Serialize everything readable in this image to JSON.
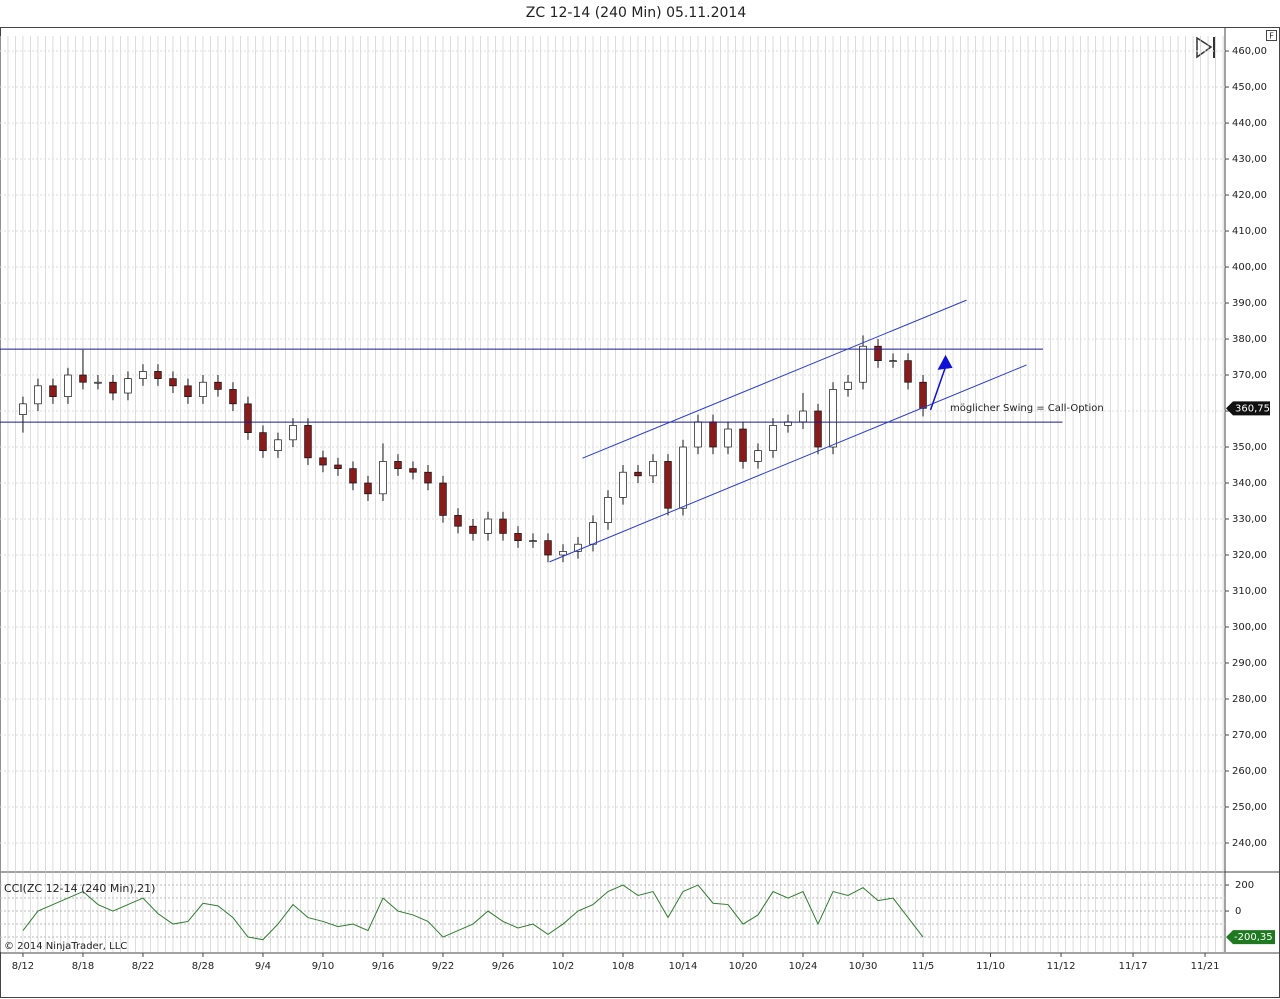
{
  "chart_data": {
    "type": "candlestick",
    "title": "ZC 12-14 (240 Min)  05.11.2014",
    "copyright": "© 2014 NinjaTrader, LLC",
    "xlim": [
      -1.53,
      80.13
    ],
    "xticks": [
      {
        "value": 0,
        "label": "8/12"
      },
      {
        "value": 4,
        "label": "8/18"
      },
      {
        "value": 8,
        "label": "8/22"
      },
      {
        "value": 12,
        "label": "8/28"
      },
      {
        "value": 16,
        "label": "9/4"
      },
      {
        "value": 20,
        "label": "9/10"
      },
      {
        "value": 24,
        "label": "9/16"
      },
      {
        "value": 28,
        "label": "9/22"
      },
      {
        "value": 32,
        "label": "9/26"
      },
      {
        "value": 36,
        "label": "10/2"
      },
      {
        "value": 40,
        "label": "10/8"
      },
      {
        "value": 44,
        "label": "10/14"
      },
      {
        "value": 48,
        "label": "10/20"
      },
      {
        "value": 52,
        "label": "10/24"
      },
      {
        "value": 56,
        "label": "10/30"
      },
      {
        "value": 60,
        "label": "11/5"
      },
      {
        "value": 64.5,
        "label": "11/10"
      },
      {
        "value": 69.2,
        "label": "11/12"
      },
      {
        "value": 74,
        "label": "11/17"
      },
      {
        "value": 78.8,
        "label": "11/21"
      }
    ],
    "ylim": [
      232.5,
      466.4
    ],
    "yticks": [
      {
        "value": 240,
        "label": "240,00"
      },
      {
        "value": 250,
        "label": "250,00"
      },
      {
        "value": 260,
        "label": "260,00"
      },
      {
        "value": 270,
        "label": "270,00"
      },
      {
        "value": 280,
        "label": "280,00"
      },
      {
        "value": 290,
        "label": "290,00"
      },
      {
        "value": 300,
        "label": "300,00"
      },
      {
        "value": 310,
        "label": "310,00"
      },
      {
        "value": 320,
        "label": "320,00"
      },
      {
        "value": 330,
        "label": "330,00"
      },
      {
        "value": 340,
        "label": "340,00"
      },
      {
        "value": 350,
        "label": "350,00"
      },
      {
        "value": 360,
        "label": "360,00"
      },
      {
        "value": 370,
        "label": "370,00"
      },
      {
        "value": 380,
        "label": "380,00"
      },
      {
        "value": 390,
        "label": "390,00"
      },
      {
        "value": 400,
        "label": "400,00"
      },
      {
        "value": 410,
        "label": "410,00"
      },
      {
        "value": 420,
        "label": "420,00"
      },
      {
        "value": 430,
        "label": "430,00"
      },
      {
        "value": 440,
        "label": "440,00"
      },
      {
        "value": 450,
        "label": "450,00"
      },
      {
        "value": 460,
        "label": "460,00"
      }
    ],
    "up_color": "#ffffff",
    "down_color": "#8b1a1a",
    "open": [
      359,
      362,
      367,
      364,
      370,
      368,
      368,
      365,
      369,
      371,
      369,
      367,
      364,
      368,
      366,
      362,
      354,
      349,
      352,
      356,
      347,
      345,
      344,
      340,
      337,
      346,
      344,
      343,
      340,
      331,
      328,
      326,
      330,
      326,
      324,
      324,
      320,
      321,
      323,
      329,
      336,
      343,
      342,
      346,
      333,
      350,
      357,
      350,
      355,
      346,
      349,
      356,
      357,
      360,
      350,
      366,
      368,
      378,
      374,
      374,
      368
    ],
    "high": [
      364,
      369,
      369,
      372,
      377,
      370,
      370,
      371,
      373,
      373,
      371,
      369,
      370,
      370,
      368,
      364,
      356,
      354,
      358,
      358,
      349,
      347,
      346,
      342,
      351,
      348,
      346,
      345,
      342,
      333,
      330,
      332,
      332,
      328,
      326,
      326,
      323,
      325,
      331,
      338,
      345,
      345,
      348,
      348,
      352,
      359,
      359,
      357,
      357,
      351,
      358,
      359,
      365,
      362,
      368,
      370,
      381,
      380,
      376,
      376,
      370
    ],
    "low": [
      354,
      360,
      362,
      362,
      366,
      366,
      363,
      363,
      367,
      367,
      365,
      362,
      362,
      364,
      360,
      352,
      347,
      347,
      350,
      345,
      343,
      342,
      338,
      335,
      335,
      342,
      341,
      338,
      329,
      326,
      324,
      324,
      324,
      322,
      322,
      318,
      318,
      319,
      321,
      327,
      334,
      340,
      340,
      331,
      331,
      348,
      348,
      348,
      344,
      344,
      347,
      354,
      355,
      348,
      348,
      364,
      366,
      372,
      372,
      366,
      358.5
    ],
    "close": [
      362,
      367,
      364,
      370,
      368,
      368,
      365,
      369,
      371,
      369,
      367,
      364,
      368,
      366,
      362,
      354,
      349,
      352,
      356,
      347,
      345,
      344,
      340,
      337,
      346,
      344,
      343,
      340,
      331,
      328,
      326,
      330,
      326,
      324,
      324,
      320,
      321,
      323,
      329,
      336,
      343,
      342,
      346,
      333,
      350,
      357,
      350,
      355,
      346,
      349,
      356,
      357,
      360,
      350,
      366,
      368,
      378,
      374,
      374,
      368,
      360.75
    ],
    "last_label": "360,75",
    "lines": [
      {
        "x": [
          -1.53,
          68.0
        ],
        "y": [
          377.2,
          377.2
        ],
        "color": "#1a1a8c"
      },
      {
        "x": [
          -1.53,
          69.3
        ],
        "y": [
          356.9,
          356.9
        ],
        "color": "#1a1a8c"
      },
      {
        "x": [
          37.3,
          62.9
        ],
        "y": [
          346.9,
          390.8
        ],
        "color": "#2a3cd6"
      },
      {
        "x": [
          35.1,
          66.9
        ],
        "y": [
          318.1,
          372.8
        ],
        "color": "#2a3cd6"
      }
    ],
    "arrow": {
      "x": [
        60.5,
        61.5
      ],
      "y": [
        360.3,
        375.6
      ],
      "color": "#1010d8"
    },
    "annotation": {
      "text": "möglicher Swing = Call-Option",
      "x": 61.8,
      "y": 360.9
    },
    "cci": {
      "name": "CCI(ZC 12-14 (240 Min),21)",
      "color": "#2e7d2e",
      "ylim": [
        -315,
        285
      ],
      "yticks": [
        0,
        200
      ],
      "levels": [
        -200,
        -100,
        100
      ],
      "values": [
        -150,
        0,
        50,
        100,
        150,
        50,
        0,
        50,
        100,
        -20,
        -100,
        -80,
        60,
        40,
        -50,
        -200,
        -220,
        -100,
        50,
        -50,
        -80,
        -120,
        -100,
        -150,
        100,
        0,
        -30,
        -80,
        -200,
        -150,
        -100,
        0,
        -80,
        -130,
        -100,
        -180,
        -100,
        0,
        50,
        150,
        200,
        120,
        150,
        -50,
        150,
        200,
        60,
        50,
        -100,
        -30,
        150,
        100,
        150,
        -100,
        150,
        120,
        180,
        80,
        100,
        -50,
        -200.35
      ],
      "last_label": "-200,35"
    }
  }
}
